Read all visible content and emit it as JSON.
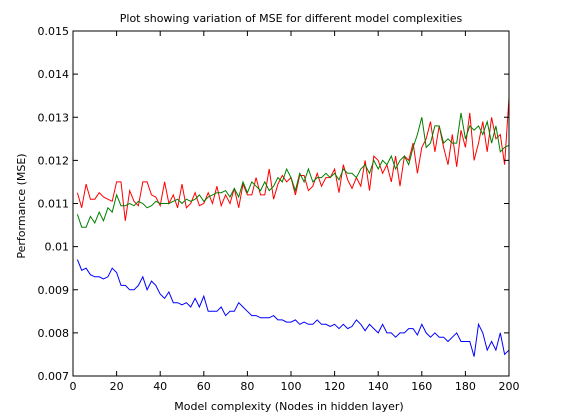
{
  "chart_data": {
    "type": "line",
    "title": "Plot showing variation of MSE for different model complexities",
    "xlabel": "Model complexity (Nodes in hidden layer)",
    "ylabel": "Performance (MSE)",
    "xlim": [
      0,
      200
    ],
    "ylim": [
      0.007,
      0.015
    ],
    "xticks": [
      0,
      20,
      40,
      60,
      80,
      100,
      120,
      140,
      160,
      180,
      200
    ],
    "yticks": [
      0.007,
      0.008,
      0.009,
      0.01,
      0.011,
      0.012,
      0.013,
      0.014,
      0.015
    ],
    "xtick_labels": [
      "0",
      "20",
      "40",
      "60",
      "80",
      "100",
      "120",
      "140",
      "160",
      "180",
      "200"
    ],
    "ytick_labels": [
      "0.007",
      "0.008",
      "0.009",
      "0.01",
      "0.011",
      "0.012",
      "0.013",
      "0.014",
      "0.015"
    ],
    "grid": false,
    "legend": "none",
    "x": [
      2,
      4,
      6,
      8,
      10,
      12,
      14,
      16,
      18,
      20,
      22,
      24,
      26,
      28,
      30,
      32,
      34,
      36,
      38,
      40,
      42,
      44,
      46,
      48,
      50,
      52,
      54,
      56,
      58,
      60,
      62,
      64,
      66,
      68,
      70,
      72,
      74,
      76,
      78,
      80,
      82,
      84,
      86,
      88,
      90,
      92,
      94,
      96,
      98,
      100,
      102,
      104,
      106,
      108,
      110,
      112,
      114,
      116,
      118,
      120,
      122,
      124,
      126,
      128,
      130,
      132,
      134,
      136,
      138,
      140,
      142,
      144,
      146,
      148,
      150,
      152,
      154,
      156,
      158,
      160,
      162,
      164,
      166,
      168,
      170,
      172,
      174,
      176,
      178,
      180,
      182,
      184,
      186,
      188,
      190,
      192,
      194,
      196,
      198,
      200
    ],
    "series": [
      {
        "color": "#ff0000",
        "values": [
          0.01125,
          0.0109,
          0.01145,
          0.0111,
          0.0111,
          0.01125,
          0.01115,
          0.0111,
          0.01105,
          0.0115,
          0.0115,
          0.0106,
          0.0113,
          0.01105,
          0.01095,
          0.0115,
          0.0115,
          0.0112,
          0.01115,
          0.01095,
          0.0115,
          0.011,
          0.0112,
          0.0109,
          0.01145,
          0.0109,
          0.011,
          0.01125,
          0.01095,
          0.011,
          0.01125,
          0.011,
          0.0114,
          0.01095,
          0.0112,
          0.011,
          0.01135,
          0.0109,
          0.01145,
          0.0112,
          0.0112,
          0.0116,
          0.0112,
          0.0112,
          0.0118,
          0.0111,
          0.01145,
          0.01165,
          0.0115,
          0.0116,
          0.0112,
          0.01165,
          0.01165,
          0.0113,
          0.0114,
          0.0117,
          0.0114,
          0.0116,
          0.0116,
          0.0118,
          0.01125,
          0.0119,
          0.01155,
          0.01135,
          0.0116,
          0.0114,
          0.012,
          0.0113,
          0.0121,
          0.012,
          0.0117,
          0.0119,
          0.0115,
          0.0121,
          0.0114,
          0.0121,
          0.012,
          0.0124,
          0.0117,
          0.0123,
          0.0125,
          0.0129,
          0.0122,
          0.0128,
          0.0123,
          0.0119,
          0.0126,
          0.01185,
          0.0127,
          0.0123,
          0.0131,
          0.012,
          0.0124,
          0.0129,
          0.0122,
          0.013,
          0.0125,
          0.0126,
          0.0119,
          0.01345
        ]
      },
      {
        "color": "#008000",
        "values": [
          0.01075,
          0.01045,
          0.01045,
          0.0107,
          0.01055,
          0.0108,
          0.0106,
          0.0109,
          0.0108,
          0.0112,
          0.01095,
          0.01095,
          0.011,
          0.01095,
          0.01105,
          0.011,
          0.0109,
          0.01095,
          0.01105,
          0.011,
          0.011,
          0.011,
          0.01105,
          0.0111,
          0.011,
          0.0111,
          0.01105,
          0.0111,
          0.0112,
          0.01105,
          0.01115,
          0.0112,
          0.01125,
          0.01125,
          0.0113,
          0.01115,
          0.01135,
          0.01115,
          0.0115,
          0.01125,
          0.0115,
          0.0114,
          0.0113,
          0.0115,
          0.0113,
          0.0114,
          0.0116,
          0.0115,
          0.0118,
          0.0116,
          0.0113,
          0.0117,
          0.0115,
          0.0118,
          0.0115,
          0.0116,
          0.0116,
          0.0117,
          0.0116,
          0.0117,
          0.01155,
          0.0118,
          0.0117,
          0.0117,
          0.0116,
          0.0118,
          0.0119,
          0.0117,
          0.012,
          0.0118,
          0.012,
          0.0119,
          0.0121,
          0.0118,
          0.012,
          0.0121,
          0.0119,
          0.0123,
          0.0126,
          0.013,
          0.0123,
          0.0124,
          0.0128,
          0.0128,
          0.0124,
          0.0125,
          0.0124,
          0.0124,
          0.0131,
          0.0125,
          0.0128,
          0.0127,
          0.0128,
          0.0126,
          0.0129,
          0.0124,
          0.0128,
          0.0122,
          0.0123,
          0.01235
        ]
      },
      {
        "color": "#0000ff",
        "values": [
          0.0097,
          0.00945,
          0.0095,
          0.00935,
          0.0093,
          0.0093,
          0.00925,
          0.0093,
          0.0095,
          0.0094,
          0.0091,
          0.0091,
          0.009,
          0.009,
          0.0091,
          0.0093,
          0.009,
          0.0092,
          0.0091,
          0.0089,
          0.0088,
          0.00895,
          0.0087,
          0.0087,
          0.00865,
          0.0087,
          0.0086,
          0.0088,
          0.0086,
          0.00885,
          0.0085,
          0.0085,
          0.0085,
          0.0086,
          0.0084,
          0.0085,
          0.0085,
          0.0087,
          0.0086,
          0.0085,
          0.0084,
          0.0084,
          0.00835,
          0.00835,
          0.00835,
          0.0084,
          0.0083,
          0.0083,
          0.00825,
          0.00825,
          0.0083,
          0.0082,
          0.00825,
          0.0082,
          0.0082,
          0.0083,
          0.0082,
          0.0082,
          0.00815,
          0.0082,
          0.0081,
          0.0082,
          0.0081,
          0.00815,
          0.0083,
          0.0082,
          0.00805,
          0.0082,
          0.0081,
          0.008,
          0.0082,
          0.008,
          0.008,
          0.0079,
          0.008,
          0.008,
          0.0081,
          0.0081,
          0.00795,
          0.0082,
          0.008,
          0.0079,
          0.008,
          0.0079,
          0.0079,
          0.0078,
          0.0079,
          0.008,
          0.0078,
          0.0078,
          0.0078,
          0.00745,
          0.0082,
          0.008,
          0.0076,
          0.0078,
          0.0076,
          0.008,
          0.0075,
          0.0076
        ]
      }
    ]
  }
}
